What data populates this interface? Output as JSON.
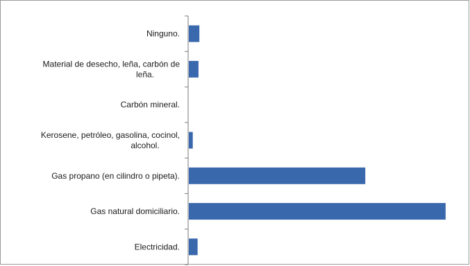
{
  "chart_data": {
    "type": "bar",
    "orientation": "horizontal",
    "categories": [
      "Ninguno.",
      "Material de desecho, leña, carbón de leña.",
      "Carbón mineral.",
      "Kerosene, petróleo, gasolina, cocinol, alcohol.",
      "Gas propano (en cilindro o pipeta).",
      "Gas natural domiciliario.",
      "Electricidad."
    ],
    "category_lines": [
      [
        "Ninguno."
      ],
      [
        "Material de desecho, leña, carbón de",
        "leña."
      ],
      [
        "Carbón mineral."
      ],
      [
        "Kerosene, petróleo, gasolina, cocinol,",
        "alcohol."
      ],
      [
        "Gas propano (en cilindro o pipeta)."
      ],
      [
        "Gas natural domiciliario."
      ],
      [
        "Electricidad."
      ]
    ],
    "values": [
      2.4,
      2.2,
      0.0,
      0.9,
      40.2,
      58.5,
      2.0
    ],
    "xlim": [
      0,
      62
    ],
    "title": "",
    "xlabel": "",
    "ylabel": "",
    "grid": false,
    "legend": "none",
    "bar_color": "#3a68ad"
  }
}
